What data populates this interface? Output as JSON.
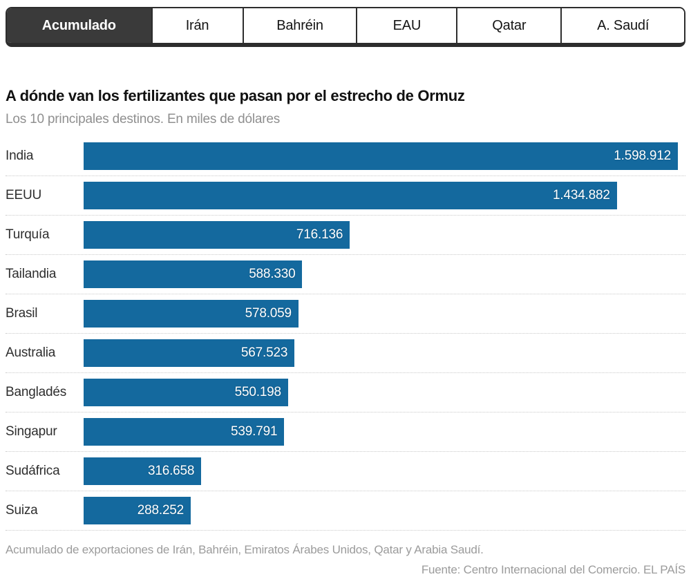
{
  "tabs": [
    {
      "label": "Acumulado",
      "active": true
    },
    {
      "label": "Irán",
      "active": false
    },
    {
      "label": "Bahréin",
      "active": false
    },
    {
      "label": "EAU",
      "active": false
    },
    {
      "label": "Qatar",
      "active": false
    },
    {
      "label": "A. Saudí",
      "active": false
    }
  ],
  "chart_data": {
    "type": "bar",
    "orientation": "horizontal",
    "title": "A dónde van los fertilizantes que pasan por el estrecho de Ormuz",
    "subtitle": "Los 10 principales destinos. En miles de dólares",
    "categories": [
      "India",
      "EEUU",
      "Turquía",
      "Tailandia",
      "Brasil",
      "Australia",
      "Bangladés",
      "Singapur",
      "Sudáfrica",
      "Suiza"
    ],
    "values": [
      1598912,
      1434882,
      716136,
      588330,
      578059,
      567523,
      550198,
      539791,
      316658,
      288252
    ],
    "value_labels": [
      "1.598.912",
      "1.434.882",
      "716.136",
      "588.330",
      "578.059",
      "567.523",
      "550.198",
      "539.791",
      "316.658",
      "288.252"
    ],
    "xlim": [
      0,
      1598912
    ],
    "bar_color": "#14699e",
    "grid": false,
    "legend": false,
    "value_label_position": "inside-end"
  },
  "footer": {
    "note": "Acumulado de exportaciones de Irán, Bahréin, Emiratos Árabes Unidos, Qatar y Arabia Saudí.",
    "source": "Fuente: Centro Internacional del Comercio. EL PAÍS"
  },
  "colors": {
    "bar": "#14699e",
    "active_tab_bg": "#3a3a3a",
    "tab_border": "#2d2d2d",
    "title_text": "#111111",
    "muted_text": "#8f8f8f",
    "footer_text": "#9b9b9b",
    "separator": "#c9c9c9"
  }
}
